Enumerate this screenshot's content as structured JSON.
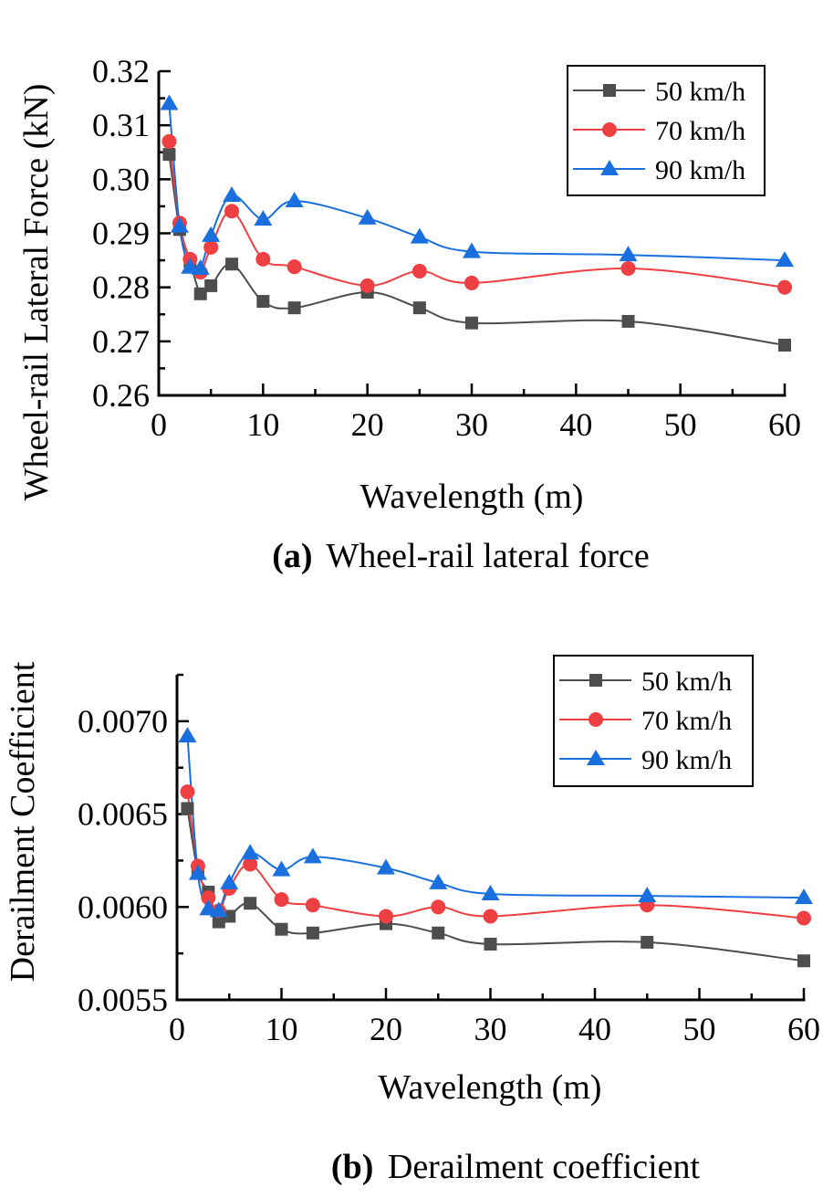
{
  "colors": {
    "s50": "#4d4d4d",
    "s70": "#ee3f42",
    "s90": "#1a6fdf",
    "axis": "#000000"
  },
  "chart_data": [
    {
      "type": "line",
      "title": "",
      "caption_label": "(a)",
      "caption_text": "Wheel-rail lateral force",
      "xlabel": "Wavelength (m)",
      "ylabel": "Wheel-rail Lateral Force (kN)",
      "xlim": [
        0,
        60
      ],
      "ylim": [
        0.26,
        0.32
      ],
      "xticks": [
        0,
        10,
        20,
        30,
        40,
        50,
        60
      ],
      "xtick_labels": [
        "0",
        "10",
        "20",
        "30",
        "40",
        "50",
        "60"
      ],
      "yticks": [
        0.26,
        0.27,
        0.28,
        0.29,
        0.3,
        0.31,
        0.32
      ],
      "ytick_labels": [
        "0.26",
        "0.27",
        "0.28",
        "0.29",
        "0.30",
        "0.31",
        "0.32"
      ],
      "x_minor": 5,
      "y_minor": 0.005,
      "legend_position": "top-right",
      "x": [
        1,
        2,
        3,
        4,
        5,
        7,
        10,
        13,
        20,
        25,
        30,
        45,
        60
      ],
      "series": [
        {
          "name": "50 km/h",
          "marker": "square",
          "color_key": "s50",
          "values": [
            0.3046,
            0.2907,
            0.2848,
            0.2788,
            0.2803,
            0.2843,
            0.2774,
            0.2762,
            0.2791,
            0.2762,
            0.2734,
            0.2737,
            0.2693
          ]
        },
        {
          "name": "70 km/h",
          "marker": "circle",
          "color_key": "s70",
          "values": [
            0.307,
            0.2919,
            0.2852,
            0.2828,
            0.2874,
            0.2941,
            0.2852,
            0.2838,
            0.2803,
            0.283,
            0.2808,
            0.2835,
            0.28
          ]
        },
        {
          "name": "90 km/h",
          "marker": "triangle",
          "color_key": "s90",
          "values": [
            0.314,
            0.2913,
            0.2837,
            0.2835,
            0.2896,
            0.297,
            0.2926,
            0.296,
            0.2928,
            0.2893,
            0.2866,
            0.286,
            0.285
          ]
        }
      ]
    },
    {
      "type": "line",
      "title": "",
      "caption_label": "(b)",
      "caption_text": "Derailment coefficient",
      "xlabel": "Wavelength (m)",
      "ylabel": "Derailment Coefficient",
      "xlim": [
        0,
        60
      ],
      "ylim": [
        0.0055,
        0.00725
      ],
      "xticks": [
        0,
        10,
        20,
        30,
        40,
        50,
        60
      ],
      "xtick_labels": [
        "0",
        "10",
        "20",
        "30",
        "40",
        "50",
        "60"
      ],
      "yticks": [
        0.0055,
        0.006,
        0.0065,
        0.007
      ],
      "ytick_labels": [
        "0.0055",
        "0.0060",
        "0.0065",
        "0.0070"
      ],
      "x_minor": 5,
      "y_minor": 0.00025,
      "legend_position": "top-right",
      "x": [
        1,
        2,
        3,
        4,
        5,
        7,
        10,
        13,
        20,
        25,
        30,
        45,
        60
      ],
      "series": [
        {
          "name": "50 km/h",
          "marker": "square",
          "color_key": "s50",
          "values": [
            0.00653,
            0.00619,
            0.00608,
            0.00592,
            0.00595,
            0.00602,
            0.00588,
            0.00586,
            0.00591,
            0.00586,
            0.0058,
            0.00581,
            0.00571
          ]
        },
        {
          "name": "70 km/h",
          "marker": "circle",
          "color_key": "s70",
          "values": [
            0.00662,
            0.00622,
            0.00605,
            0.00598,
            0.0061,
            0.00623,
            0.00604,
            0.00601,
            0.00595,
            0.006,
            0.00595,
            0.00601,
            0.00594
          ]
        },
        {
          "name": "90 km/h",
          "marker": "triangle",
          "color_key": "s90",
          "values": [
            0.00692,
            0.00618,
            0.00599,
            0.00598,
            0.00613,
            0.00629,
            0.0062,
            0.00627,
            0.00621,
            0.00613,
            0.00607,
            0.00606,
            0.00605
          ]
        }
      ]
    }
  ]
}
